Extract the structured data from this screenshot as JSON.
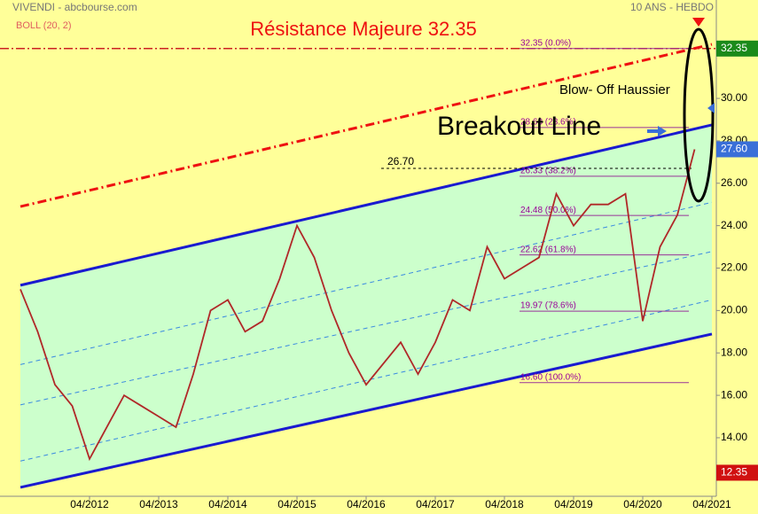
{
  "chart_data": {
    "type": "line",
    "source": "VIVENDI - abcbourse.com",
    "indicator": "BOLL (20, 2)",
    "period": "10 ANS - HEBDO",
    "title": "Résistance Majeure 32.35",
    "annotations": {
      "blowoff": "Blow- Off Haussier",
      "breakout": "Breakout Line"
    },
    "categories": [
      null,
      null,
      null,
      null,
      "04/2012",
      null,
      null,
      null,
      "04/2013",
      null,
      null,
      null,
      "04/2014",
      null,
      null,
      null,
      "04/2015",
      null,
      null,
      null,
      "04/2016",
      null,
      null,
      null,
      "04/2017",
      null,
      null,
      null,
      "04/2018",
      null,
      null,
      null,
      "04/2019",
      null,
      null,
      null,
      "04/2020",
      null,
      null,
      null,
      "04/2021"
    ],
    "values": [
      21.0,
      19.0,
      16.5,
      15.5,
      13.0,
      14.5,
      16.0,
      15.5,
      15.0,
      14.5,
      17.0,
      20.0,
      20.5,
      19.0,
      19.5,
      21.5,
      24.0,
      22.5,
      20.0,
      18.0,
      16.5,
      17.5,
      18.5,
      17.0,
      18.5,
      20.5,
      20.0,
      23.0,
      21.5,
      22.0,
      22.5,
      25.5,
      24.0,
      25.0,
      25.0,
      25.5,
      19.5,
      23.0,
      24.5,
      27.6,
      null
    ],
    "color": "#b02828",
    "ylim": [
      11.24,
      34.64
    ],
    "yticks": [
      {
        "value": 14,
        "label": "14.00"
      },
      {
        "value": 16,
        "label": "16.00"
      },
      {
        "value": 18,
        "label": "18.00"
      },
      {
        "value": 20,
        "label": "20.00"
      },
      {
        "value": 22,
        "label": "22.00"
      },
      {
        "value": 24,
        "label": "24.00"
      },
      {
        "value": 26,
        "label": "26.00"
      },
      {
        "value": 28,
        "label": "28.00"
      },
      {
        "value": 30,
        "label": "30.00"
      }
    ],
    "price_tags": [
      {
        "value": 32.35,
        "color": "#1a8a1a"
      },
      {
        "value": 27.6,
        "label": "27.60",
        "color": "#3a6fd8"
      },
      {
        "value": 12.35,
        "color": "#d01010"
      }
    ],
    "level": {
      "value": 26.7,
      "label": "26.70"
    },
    "fib_levels": [
      {
        "value": 32.35,
        "label": "32.35 (0.0%)"
      },
      {
        "value": 28.63,
        "label": "28.63 (23.6%)"
      },
      {
        "value": 26.33,
        "label": "26.33 (38.2%)"
      },
      {
        "value": 24.48,
        "label": "24.48 (50.0%)"
      },
      {
        "value": 22.62,
        "label": "22.62 (61.8%)"
      },
      {
        "value": 19.97,
        "label": "19.97 (78.6%)"
      },
      {
        "value": 16.6,
        "label": "16.60 (100.0%)"
      }
    ],
    "trend_lines": [
      {
        "color": "#ee1111",
        "style": "dashdot",
        "values": [
          24.9,
          32.55
        ]
      },
      {
        "color": "#1a1ad0",
        "style": "solid",
        "values": [
          21.19,
          28.75
        ]
      },
      {
        "color": "#3a8ae0",
        "style": "dashed",
        "values": [
          17.45,
          25.1
        ]
      },
      {
        "color": "#3a8ae0",
        "style": "dashed",
        "values": [
          15.55,
          22.78
        ]
      },
      {
        "color": "#3a8ae0",
        "style": "dashed",
        "values": [
          12.9,
          20.5
        ]
      },
      {
        "color": "#1a1ad0",
        "style": "solid",
        "values": [
          11.66,
          18.89
        ]
      }
    ]
  }
}
